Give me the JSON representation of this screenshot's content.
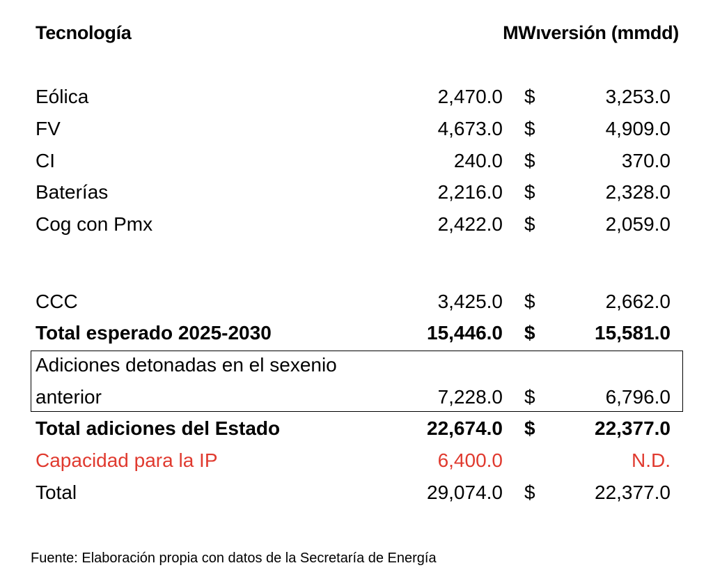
{
  "header": {
    "tecnologia": "Tecnología",
    "mw_inversion": "MWıversión (mmdd)"
  },
  "rows": [
    {
      "label": "Eólica",
      "mw": "2,470.0",
      "currency": "$",
      "inversion": "3,253.0"
    },
    {
      "label": "FV",
      "mw": "4,673.0",
      "currency": "$",
      "inversion": "4,909.0"
    },
    {
      "label": "CI",
      "mw": "240.0",
      "currency": "$",
      "inversion": "370.0"
    },
    {
      "label": "Baterías",
      "mw": "2,216.0",
      "currency": "$",
      "inversion": "2,328.0"
    },
    {
      "label": "Cog con Pmx",
      "mw": "2,422.0",
      "currency": "$",
      "inversion": "2,059.0"
    },
    {
      "label": "CCC",
      "mw": "3,425.0",
      "currency": "$",
      "inversion": "2,662.0"
    },
    {
      "label": "Total esperado 2025-2030",
      "mw": "15,446.0",
      "currency": "$",
      "inversion": "15,581.0"
    },
    {
      "label_line1": "Adiciones detonadas en el sexenio",
      "label_line2": "anterior",
      "mw": "7,228.0",
      "currency": "$",
      "inversion": "6,796.0"
    },
    {
      "label": "Total adiciones del Estado",
      "mw": "22,674.0",
      "currency": "$",
      "inversion": "22,377.0"
    },
    {
      "label": "Capacidad para la IP",
      "mw": "6,400.0",
      "inversion": "N.D."
    },
    {
      "label": "Total",
      "mw": "29,074.0",
      "currency": "$",
      "inversion": "22,377.0"
    }
  ],
  "colors": {
    "highlight_red": "#e03a2f"
  },
  "source": "Fuente: Elaboración propia con datos de la Secretaría de Energía"
}
